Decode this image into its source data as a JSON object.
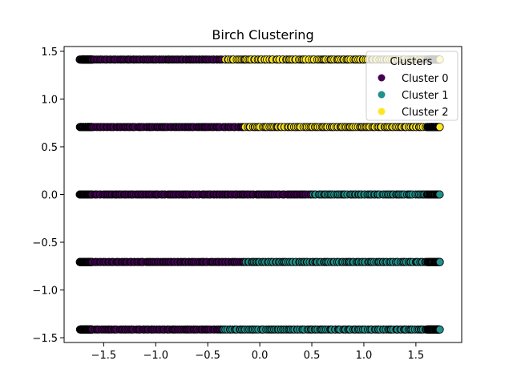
{
  "chart_data": {
    "type": "scatter",
    "title": "Birch Clustering",
    "xlabel": "",
    "ylabel": "",
    "xlim": [
      -1.88,
      1.94
    ],
    "ylim": [
      -1.55,
      1.55
    ],
    "x_ticks": [
      -1.5,
      -1.0,
      -0.5,
      0.0,
      0.5,
      1.0,
      1.5
    ],
    "x_tick_labels": [
      "−1.5",
      "−1.0",
      "−0.5",
      "0.0",
      "0.5",
      "1.0",
      "1.5"
    ],
    "y_ticks": [
      -1.5,
      -1.0,
      -0.5,
      0.0,
      0.5,
      1.0,
      1.5
    ],
    "y_tick_labels": [
      "−1.5",
      "−1.0",
      "−0.5",
      "0.0",
      "0.5",
      "1.0",
      "1.5"
    ],
    "grid": false,
    "legend": {
      "title": "Clusters",
      "placement": "top-right",
      "entries": [
        "Cluster 0",
        "Cluster 1",
        "Cluster 2"
      ]
    },
    "x_range": [
      -1.73,
      1.73
    ],
    "rows": [
      {
        "y": 1.414,
        "segments": [
          {
            "cluster": 0,
            "x_from": -1.73,
            "x_to": -0.35
          },
          {
            "cluster": 2,
            "x_from": -0.35,
            "x_to": 1.73
          }
        ]
      },
      {
        "y": 0.707,
        "segments": [
          {
            "cluster": 0,
            "x_from": -1.73,
            "x_to": -0.15
          },
          {
            "cluster": 2,
            "x_from": -0.15,
            "x_to": 1.73
          }
        ]
      },
      {
        "y": 0.0,
        "segments": [
          {
            "cluster": 0,
            "x_from": -1.73,
            "x_to": 0.5
          },
          {
            "cluster": 1,
            "x_from": 0.5,
            "x_to": 1.73
          }
        ]
      },
      {
        "y": -0.707,
        "segments": [
          {
            "cluster": 0,
            "x_from": -1.73,
            "x_to": -0.15
          },
          {
            "cluster": 1,
            "x_from": -0.15,
            "x_to": 1.73
          }
        ]
      },
      {
        "y": -1.414,
        "segments": [
          {
            "cluster": 0,
            "x_from": -1.73,
            "x_to": -0.35
          },
          {
            "cluster": 1,
            "x_from": -0.35,
            "x_to": 1.73
          }
        ]
      }
    ],
    "colors": {
      "cluster_0": "#440154",
      "cluster_1": "#21918c",
      "cluster_2": "#fde725",
      "edge": "#000000"
    }
  }
}
